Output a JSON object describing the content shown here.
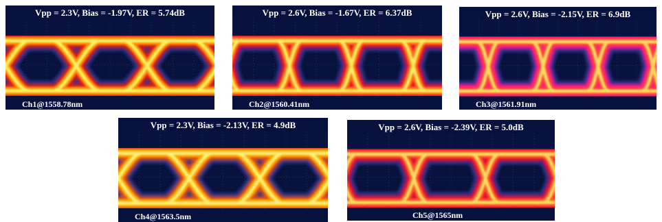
{
  "panels": [
    {
      "title": "Vpp = 2.3V, Bias = -1.97V, ER = 5.74dB",
      "label": "Ch1@1558.78nm"
    },
    {
      "title": "Vpp = 2.6V, Bias = -1.67V, ER = 6.37dB",
      "label": "Ch2@1560.41nm"
    },
    {
      "title": "Vpp = 2.6V, Bias = -2.15V, ER = 6.9dB",
      "label": "Ch3@1561.91nm"
    },
    {
      "title": "Vpp = 2.3V, Bias = -2.13V, ER = 4.9dB",
      "label": "Ch4@1563.5nm"
    },
    {
      "title": "Vpp = 2.6V, Bias = -2.39V, ER = 5.0dB",
      "label": "Ch5@1565nm"
    }
  ]
}
